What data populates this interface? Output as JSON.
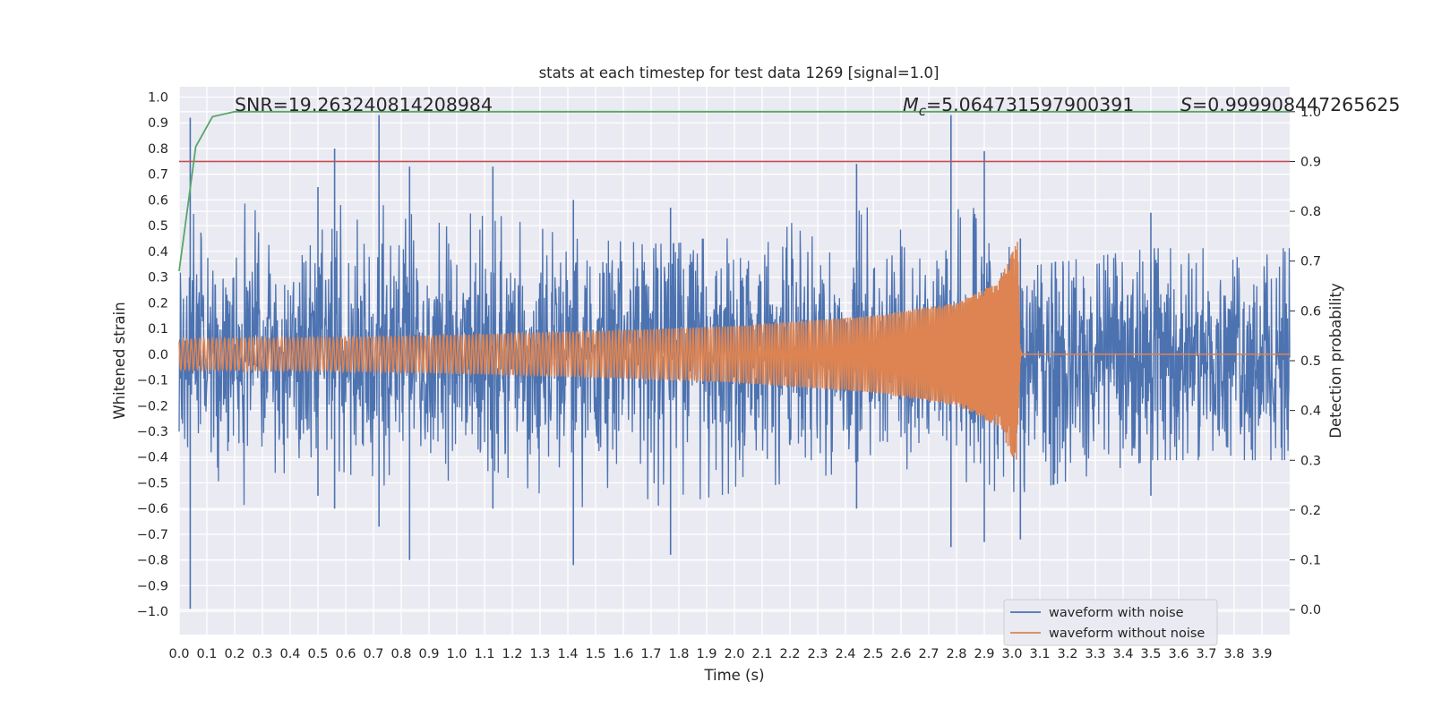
{
  "chart_data": {
    "type": "line",
    "title": "stats at each timestep for test data 1269 [signal=1.0]",
    "xlabel": "Time (s)",
    "ylabel": "Whitened strain",
    "y2label": "Detection probability",
    "xlim": [
      0.0,
      4.0
    ],
    "ylim": [
      -1.09,
      1.04
    ],
    "y2lim": [
      -0.05,
      1.05
    ],
    "grid": true,
    "legend_position": "bottom-right",
    "x_ticks": [
      "0.0",
      "0.1",
      "0.2",
      "0.3",
      "0.4",
      "0.5",
      "0.6",
      "0.7",
      "0.8",
      "0.9",
      "1.0",
      "1.1",
      "1.2",
      "1.3",
      "1.4",
      "1.5",
      "1.6",
      "1.7",
      "1.8",
      "1.9",
      "2.0",
      "2.1",
      "2.2",
      "2.3",
      "2.4",
      "2.5",
      "2.6",
      "2.7",
      "2.8",
      "2.9",
      "3.0",
      "3.1",
      "3.2",
      "3.3",
      "3.4",
      "3.5",
      "3.6",
      "3.7",
      "3.8",
      "3.9"
    ],
    "y_ticks": [
      "1.0",
      "0.9",
      "0.8",
      "0.7",
      "0.6",
      "0.5",
      "0.4",
      "0.3",
      "0.2",
      "0.1",
      "0.0",
      "−0.1",
      "−0.2",
      "−0.3",
      "−0.4",
      "−0.5",
      "−0.6",
      "−0.7",
      "−0.8",
      "−0.9",
      "−1.0"
    ],
    "y2_ticks": [
      "1.0",
      "0.9",
      "0.8",
      "0.7",
      "0.6",
      "0.5",
      "0.4",
      "0.3",
      "0.2",
      "0.1",
      "0.0"
    ],
    "annotations": {
      "snr": "SNR=19.263240814208984",
      "mc_symbol": "M",
      "mc_subscript": "c",
      "mc_value": "=5.064731597900391",
      "s_symbol": "S",
      "s_value": "=0.999908447265625"
    },
    "threshold": 0.9,
    "merger_time": 3.03,
    "noise_envelope": [
      {
        "x": 0.0,
        "peak": 0.45,
        "trough": -0.45
      },
      {
        "x": 0.04,
        "peak": 0.92,
        "trough": -0.99
      },
      {
        "x": 0.5,
        "peak": 0.65,
        "trough": -0.55
      },
      {
        "x": 0.56,
        "peak": 0.8,
        "trough": -0.6
      },
      {
        "x": 0.72,
        "peak": 0.93,
        "trough": -0.67
      },
      {
        "x": 0.83,
        "peak": 0.73,
        "trough": -0.8
      },
      {
        "x": 1.13,
        "peak": 0.73,
        "trough": -0.6
      },
      {
        "x": 1.42,
        "peak": 0.6,
        "trough": -0.82
      },
      {
        "x": 1.77,
        "peak": 0.57,
        "trough": -0.78
      },
      {
        "x": 2.44,
        "peak": 0.74,
        "trough": -0.6
      },
      {
        "x": 2.78,
        "peak": 0.93,
        "trough": -0.75
      },
      {
        "x": 2.9,
        "peak": 0.79,
        "trough": -0.73
      },
      {
        "x": 3.03,
        "peak": 0.45,
        "trough": -0.72
      },
      {
        "x": 3.5,
        "peak": 0.55,
        "trough": -0.55
      },
      {
        "x": 4.0,
        "peak": 0.55,
        "trough": -0.55
      }
    ],
    "series": [
      {
        "name": "waveform with noise",
        "color": "#4c72b0",
        "axis": "left",
        "kind": "noise"
      },
      {
        "name": "waveform without noise",
        "color": "#dd8452",
        "axis": "left",
        "kind": "chirp",
        "envelope": [
          {
            "x": 0.0,
            "amplitude": 0.06
          },
          {
            "x": 0.5,
            "amplitude": 0.065
          },
          {
            "x": 1.0,
            "amplitude": 0.075
          },
          {
            "x": 1.5,
            "amplitude": 0.09
          },
          {
            "x": 2.0,
            "amplitude": 0.11
          },
          {
            "x": 2.5,
            "amplitude": 0.15
          },
          {
            "x": 2.8,
            "amplitude": 0.2
          },
          {
            "x": 2.95,
            "amplitude": 0.28
          },
          {
            "x": 3.02,
            "amplitude": 0.44
          },
          {
            "x": 3.03,
            "amplitude": 0.0
          },
          {
            "x": 4.0,
            "amplitude": 0.0
          }
        ]
      },
      {
        "name": "",
        "color": "#55a868",
        "axis": "right",
        "kind": "probability",
        "points": [
          {
            "x": 0.0,
            "y": 0.68
          },
          {
            "x": 0.06,
            "y": 0.93
          },
          {
            "x": 0.12,
            "y": 0.99
          },
          {
            "x": 0.2,
            "y": 1.0
          },
          {
            "x": 4.0,
            "y": 1.0
          }
        ]
      },
      {
        "name": "",
        "color": "#c44e52",
        "axis": "right",
        "kind": "threshold"
      }
    ]
  }
}
